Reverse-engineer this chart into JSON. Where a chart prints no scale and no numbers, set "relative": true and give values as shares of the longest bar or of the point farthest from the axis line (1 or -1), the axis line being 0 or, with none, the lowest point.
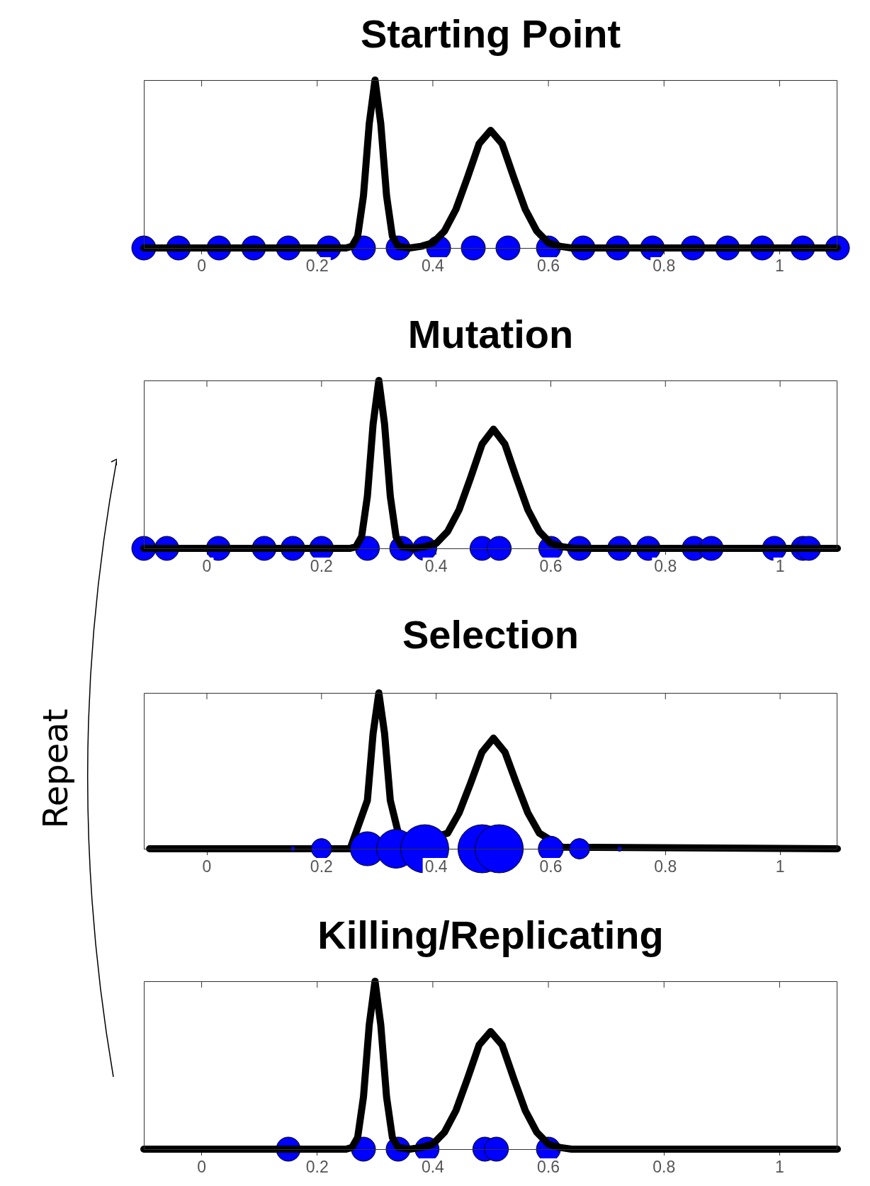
{
  "chart_data": [
    {
      "type": "line",
      "title": "Starting Point",
      "relative": true,
      "xlim": [
        -0.1,
        1.1
      ],
      "xticks": [
        0,
        0.2,
        0.4,
        0.6,
        0.8,
        1
      ],
      "tick_labels": "x",
      "legend": false,
      "series": [
        {
          "type": "scatter",
          "color": "#0000ff",
          "marker": "circle",
          "x": [
            -0.1,
            -0.04,
            0.03,
            0.09,
            0.15,
            0.22,
            0.28,
            0.34,
            0.41,
            0.47,
            0.53,
            0.6,
            0.66,
            0.72,
            0.78,
            0.85,
            0.91,
            0.97,
            1.04,
            1.1
          ],
          "values": [
            0,
            0,
            0,
            0,
            0,
            0,
            0,
            0,
            0,
            0,
            0,
            0,
            0,
            0,
            0,
            0,
            0,
            0,
            0,
            0
          ]
        },
        {
          "type": "line",
          "color": "#000000",
          "marker": "none",
          "x": [
            -0.1,
            0.25,
            0.26,
            0.27,
            0.28,
            0.29,
            0.3,
            0.31,
            0.32,
            0.33,
            0.34,
            0.36,
            0.38,
            0.4,
            0.42,
            0.44,
            0.46,
            0.48,
            0.5,
            0.52,
            0.54,
            0.56,
            0.58,
            0.6,
            0.62,
            0.64,
            1.1
          ],
          "values": [
            0,
            0,
            0.01,
            0.07,
            0.31,
            0.74,
            1,
            0.74,
            0.31,
            0.07,
            0.01,
            0,
            0.01,
            0.03,
            0.1,
            0.23,
            0.42,
            0.62,
            0.7,
            0.62,
            0.42,
            0.23,
            0.1,
            0.03,
            0.01,
            0,
            0
          ]
        }
      ]
    },
    {
      "type": "line",
      "title": "Mutation",
      "relative": true,
      "xlim": [
        -0.11,
        1.1
      ],
      "xticks": [
        0,
        0.2,
        0.4,
        0.6,
        0.8,
        1
      ],
      "tick_labels": "x",
      "legend": false,
      "series": [
        {
          "type": "scatter",
          "color": "#0000ff",
          "marker": "circle",
          "x": [
            -0.11,
            -0.07,
            0.02,
            0.1,
            0.15,
            0.2,
            0.28,
            0.34,
            0.38,
            0.48,
            0.51,
            0.6,
            0.65,
            0.72,
            0.77,
            0.85,
            0.88,
            0.99,
            1.04,
            1.05
          ],
          "values": [
            0,
            0,
            0,
            0,
            0,
            0,
            0,
            0,
            0,
            0,
            0,
            0,
            0,
            0,
            0,
            0,
            0,
            0,
            0,
            0
          ]
        },
        {
          "type": "line",
          "color": "#000000",
          "marker": "none",
          "x": [
            -0.11,
            0.25,
            0.26,
            0.27,
            0.28,
            0.29,
            0.3,
            0.31,
            0.32,
            0.33,
            0.34,
            0.36,
            0.38,
            0.4,
            0.42,
            0.44,
            0.46,
            0.48,
            0.5,
            0.52,
            0.54,
            0.56,
            0.58,
            0.6,
            0.62,
            0.64,
            1.1
          ],
          "values": [
            0,
            0,
            0.01,
            0.07,
            0.31,
            0.74,
            1,
            0.74,
            0.31,
            0.07,
            0.01,
            0,
            0.01,
            0.03,
            0.1,
            0.23,
            0.42,
            0.62,
            0.71,
            0.62,
            0.42,
            0.23,
            0.1,
            0.03,
            0.01,
            0,
            0
          ]
        }
      ]
    },
    {
      "type": "line",
      "title": "Selection",
      "relative": true,
      "xlim": [
        -0.11,
        1.1
      ],
      "xticks": [
        0,
        0.2,
        0.4,
        0.6,
        0.8,
        1
      ],
      "tick_labels": "x",
      "legend": false,
      "annotations": [
        "Repeat"
      ],
      "series": [
        {
          "type": "line",
          "color": "#000000",
          "marker": "none",
          "x": [
            -0.1,
            0.25,
            0.26,
            0.27,
            0.28,
            0.29,
            0.3,
            0.31,
            0.32,
            0.33,
            0.34,
            0.36,
            0.38,
            0.4,
            0.42,
            0.44,
            0.46,
            0.48,
            0.5,
            0.52,
            0.54,
            0.56,
            0.58,
            0.6,
            0.62,
            0.64,
            1.1
          ],
          "values": [
            0,
            0,
            null,
            null,
            0.31,
            0.74,
            1,
            0.74,
            0.31,
            null,
            0.01,
            null,
            null,
            null,
            0.1,
            0.23,
            0.42,
            0.62,
            0.71,
            0.62,
            0.42,
            0.23,
            0.1,
            null,
            0.01,
            null,
            0
          ]
        },
        {
          "type": "bubble",
          "color": "#0000ff",
          "marker": "circle",
          "x": [
            0.15,
            0.2,
            0.28,
            0.33,
            0.38,
            0.48,
            0.51,
            0.6,
            0.65,
            0.72
          ],
          "values": [
            0,
            0,
            0,
            0,
            0,
            0,
            0,
            0,
            0,
            0
          ],
          "sizes": [
            0.01,
            0.18,
            0.5,
            0.65,
            1,
            1,
            1,
            0.27,
            0.18,
            0.01
          ]
        }
      ]
    },
    {
      "type": "line",
      "title": "Killing/Replicating",
      "relative": true,
      "xlim": [
        -0.1,
        1.1
      ],
      "xticks": [
        0,
        0.2,
        0.4,
        0.6,
        0.8,
        1
      ],
      "tick_labels": "x",
      "legend": false,
      "series": [
        {
          "type": "scatter",
          "color": "#0000ff",
          "marker": "circle",
          "x": [
            0.15,
            0.28,
            0.34,
            0.39,
            0.49,
            0.51,
            0.6
          ],
          "values": [
            0,
            0,
            0,
            0,
            0,
            0,
            0
          ]
        },
        {
          "type": "line",
          "color": "#000000",
          "marker": "none",
          "x": [
            -0.1,
            0.25,
            0.26,
            0.27,
            0.28,
            0.29,
            0.3,
            0.31,
            0.32,
            0.33,
            0.34,
            0.36,
            0.38,
            0.4,
            0.42,
            0.44,
            0.46,
            0.48,
            0.5,
            0.52,
            0.54,
            0.56,
            0.58,
            0.6,
            0.62,
            0.64,
            1.1
          ],
          "values": [
            0,
            0,
            0.01,
            0.07,
            0.31,
            0.74,
            1,
            0.74,
            0.31,
            0.07,
            0.01,
            0,
            0.01,
            0.03,
            0.1,
            0.23,
            0.42,
            0.62,
            0.7,
            0.62,
            0.42,
            0.23,
            0.1,
            0.03,
            0.01,
            0,
            0
          ]
        }
      ]
    }
  ]
}
